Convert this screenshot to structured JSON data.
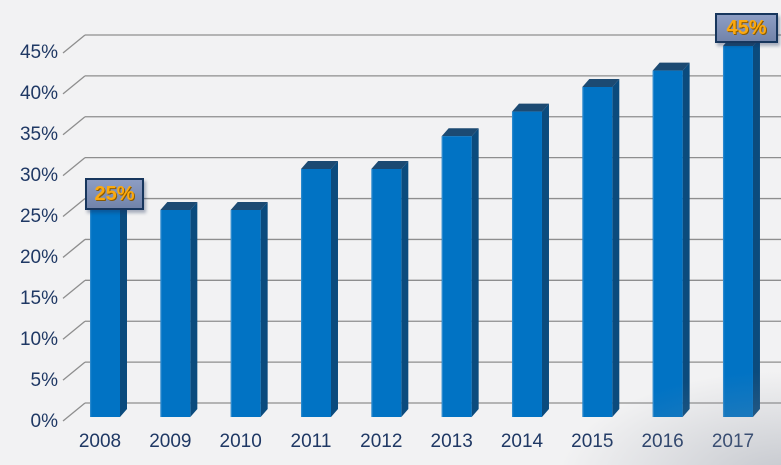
{
  "chart_data": {
    "type": "bar",
    "style": "3d-column",
    "title": "",
    "categories": [
      "2008",
      "2009",
      "2010",
      "2011",
      "2012",
      "2013",
      "2014",
      "2015",
      "2016",
      "2017"
    ],
    "values": [
      25,
      25,
      25,
      30,
      30,
      34,
      37,
      40,
      42,
      45
    ],
    "unit": "%",
    "xlabel": "",
    "ylabel": "",
    "ylim": [
      0,
      45
    ],
    "ytick_step": 5,
    "ytick_labels": [
      "0%",
      "5%",
      "10%",
      "15%",
      "20%",
      "25%",
      "30%",
      "35%",
      "40%",
      "45%"
    ],
    "grid": true,
    "legend": "none",
    "annotations": [
      {
        "target_category": "2008",
        "label": "25%"
      },
      {
        "target_category": "2017",
        "label": "45%"
      }
    ],
    "colors": {
      "bar_front": "#0173c4",
      "bar_side": "#0b4b7d",
      "bar_top": "#1c4a72",
      "bar_edge_highlight": "#5ba3d9",
      "gridline": "#8e8e8e",
      "axis_text": "#1f3864",
      "callout_fill_top": "#8d9dc3",
      "callout_fill_bottom": "#7284aa",
      "callout_border": "#17365d",
      "callout_text": "#fba90f",
      "background": "#f2f2f3"
    }
  }
}
